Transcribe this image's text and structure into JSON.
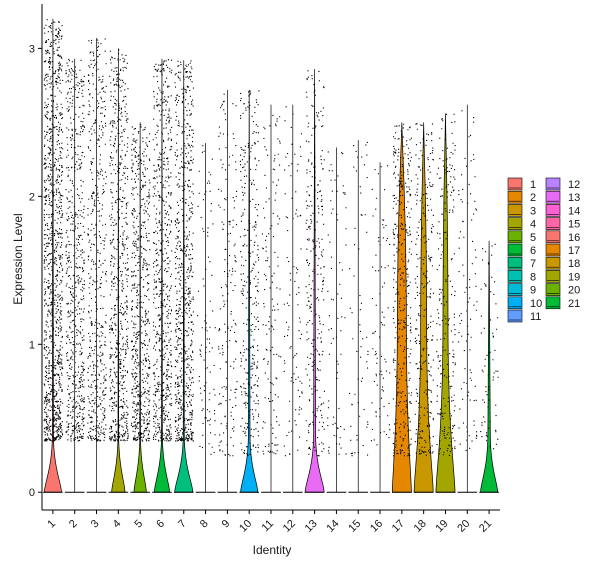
{
  "chart_data": {
    "type": "violin",
    "xlabel": "Identity",
    "ylabel": "Expression Level",
    "ylim": [
      -0.12,
      3.3
    ],
    "yticks": [
      0,
      1,
      2,
      3
    ],
    "grid": false,
    "legend_position": "right",
    "categories": [
      "1",
      "2",
      "3",
      "4",
      "5",
      "6",
      "7",
      "8",
      "9",
      "10",
      "11",
      "12",
      "13",
      "14",
      "15",
      "16",
      "17",
      "18",
      "19",
      "20",
      "21"
    ],
    "colors": [
      "#F8766D",
      "#E58700",
      "#C99800",
      "#A3A500",
      "#6BB100",
      "#00BA38",
      "#00BF7D",
      "#00C0AF",
      "#00BCD8",
      "#00B0F6",
      "#619CFF",
      "#B983FF",
      "#E76BF3",
      "#FD61D1",
      "#FF67A4",
      "#F8766D",
      "#E58700",
      "#C99800",
      "#A3A500",
      "#6BB100",
      "#00BA38"
    ],
    "series": [
      {
        "identity": "1",
        "max": 3.2,
        "point_density": 1.0,
        "zero_bulge": 0.9,
        "upper_width": 0.05
      },
      {
        "identity": "2",
        "max": 2.93,
        "point_density": 0.55,
        "zero_bulge": 0.0,
        "upper_width": 0.0
      },
      {
        "identity": "3",
        "max": 3.07,
        "point_density": 0.45,
        "zero_bulge": 0.0,
        "upper_width": 0.0
      },
      {
        "identity": "4",
        "max": 3.0,
        "point_density": 0.6,
        "zero_bulge": 0.7,
        "upper_width": 0.03
      },
      {
        "identity": "5",
        "max": 2.5,
        "point_density": 0.55,
        "zero_bulge": 0.65,
        "upper_width": 0.03
      },
      {
        "identity": "6",
        "max": 2.93,
        "point_density": 0.6,
        "zero_bulge": 0.8,
        "upper_width": 0.04
      },
      {
        "identity": "7",
        "max": 2.92,
        "point_density": 0.65,
        "zero_bulge": 0.95,
        "upper_width": 0.05
      },
      {
        "identity": "8",
        "max": 2.36,
        "point_density": 0.08,
        "zero_bulge": 0.0,
        "upper_width": 0.0
      },
      {
        "identity": "9",
        "max": 2.72,
        "point_density": 0.15,
        "zero_bulge": 0.0,
        "upper_width": 0.0
      },
      {
        "identity": "10",
        "max": 2.72,
        "point_density": 0.3,
        "zero_bulge": 0.9,
        "upper_width": 0.08
      },
      {
        "identity": "11",
        "max": 2.62,
        "point_density": 0.12,
        "zero_bulge": 0.0,
        "upper_width": 0.0
      },
      {
        "identity": "12",
        "max": 2.62,
        "point_density": 0.08,
        "zero_bulge": 0.0,
        "upper_width": 0.0
      },
      {
        "identity": "13",
        "max": 2.86,
        "point_density": 0.25,
        "zero_bulge": 1.0,
        "upper_width": 0.1
      },
      {
        "identity": "14",
        "max": 2.33,
        "point_density": 0.06,
        "zero_bulge": 0.0,
        "upper_width": 0.0
      },
      {
        "identity": "15",
        "max": 2.38,
        "point_density": 0.05,
        "zero_bulge": 0.0,
        "upper_width": 0.0
      },
      {
        "identity": "16",
        "max": 2.23,
        "point_density": 0.07,
        "zero_bulge": 0.0,
        "upper_width": 0.0
      },
      {
        "identity": "17",
        "max": 2.5,
        "point_density": 0.35,
        "zero_bulge": 1.0,
        "upper_width": 0.45
      },
      {
        "identity": "18",
        "max": 2.5,
        "point_density": 0.25,
        "zero_bulge": 1.0,
        "upper_width": 0.3
      },
      {
        "identity": "19",
        "max": 2.56,
        "point_density": 0.2,
        "zero_bulge": 1.0,
        "upper_width": 0.25
      },
      {
        "identity": "20",
        "max": 2.62,
        "point_density": 0.08,
        "zero_bulge": 0.0,
        "upper_width": 0.0
      },
      {
        "identity": "21",
        "max": 1.7,
        "point_density": 0.06,
        "zero_bulge": 0.9,
        "upper_width": 0.12
      }
    ]
  }
}
